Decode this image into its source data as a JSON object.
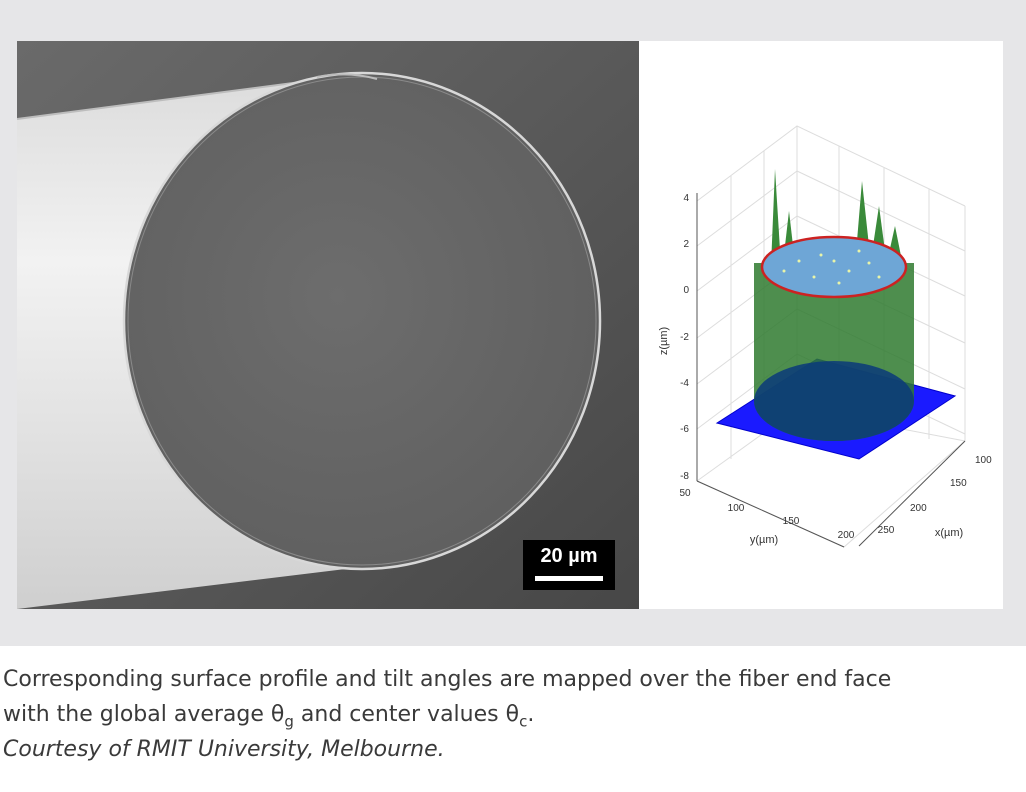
{
  "figure": {
    "sem_image": {
      "scale_bar_label": "20 µm"
    },
    "surface_plot": {
      "z_axis": {
        "label": "z(µm)",
        "ticks": [
          "4",
          "2",
          "0",
          "-2",
          "-4",
          "-6",
          "-8"
        ]
      },
      "y_axis": {
        "label": "y(µm)",
        "ticks": [
          "50",
          "100",
          "150",
          "200",
          "250"
        ]
      },
      "x_axis": {
        "label": "x(µm)",
        "ticks": [
          "100",
          "150",
          "200"
        ]
      },
      "colors": {
        "cylinder": "#2f7a2f",
        "top_surface": "#6ea6d6",
        "edge_outline": "#cc2222",
        "base_plane": "#1a1aff"
      }
    }
  },
  "caption": {
    "line1": "Corresponding surface profile and tilt angles are mapped over the fiber end face",
    "line2_prefix": "with the global average θ",
    "sub_g": "g",
    "line2_mid": " and center values θ",
    "sub_c": "c",
    "line2_end": ".",
    "credit": "Courtesy of RMIT University, Melbourne."
  }
}
